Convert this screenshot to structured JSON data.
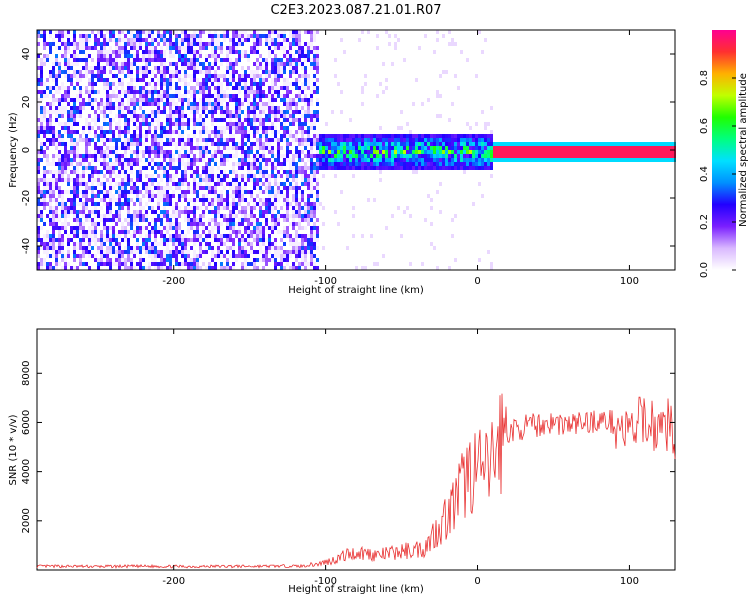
{
  "title": "C2E3.2023.087.21.01.R07",
  "chart_data": [
    {
      "type": "heatmap",
      "title": "",
      "xlabel": "Height of straight line (km)",
      "ylabel": "Frequency (Hz)",
      "xlim": [
        -290,
        130
      ],
      "ylim": [
        -50,
        50
      ],
      "xticks": [
        "-200",
        "-100",
        "0",
        "100"
      ],
      "yticks": [
        "40",
        "20",
        "0",
        "-20",
        "-40"
      ],
      "colorbar": {
        "label": "Normalized spectral amplitude",
        "range": [
          0,
          1
        ],
        "ticks": [
          "0.0",
          "0.2",
          "0.4",
          "0.6",
          "0.8"
        ],
        "colors": [
          "#ffffff",
          "#d9b8ff",
          "#7a1fff",
          "#2200ff",
          "#0090ff",
          "#00e0ff",
          "#00ff80",
          "#20ff00",
          "#c0ff00",
          "#ffb000",
          "#ff3030",
          "#ff0090"
        ]
      },
      "regions": [
        {
          "x_range": [
            -290,
            -105
          ],
          "description_values": {
            "f_range": [
              -50,
              50
            ],
            "amplitude_range": [
              0.05,
              0.35
            ]
          }
        },
        {
          "x_range": [
            -105,
            10
          ],
          "description_values": {
            "f_center": 0,
            "f_halfwidth": 8,
            "amplitude_range": [
              0.2,
              0.75
            ]
          }
        },
        {
          "x_range": [
            10,
            130
          ],
          "description_values": {
            "f_center": 0,
            "f_halfwidth": 2,
            "amplitude_range": [
              0.8,
              0.95
            ]
          }
        }
      ]
    },
    {
      "type": "line",
      "title": "",
      "xlabel": "Height of straight line (km)",
      "ylabel": "SNR (10 * v/v)",
      "xlim": [
        -290,
        130
      ],
      "ylim": [
        0,
        9800
      ],
      "xticks": [
        "-200",
        "-100",
        "0",
        "100"
      ],
      "yticks": [
        "8000",
        "6000",
        "4000",
        "2000"
      ],
      "series_color": "#e83030",
      "series": [
        {
          "x": [
            -290,
            -270,
            -250,
            -230,
            -210,
            -190,
            -170,
            -150,
            -130,
            -115,
            -105,
            -95,
            -85,
            -75,
            -65,
            -55,
            -45,
            -35,
            -25,
            -20,
            -15,
            -10,
            -5,
            0,
            5,
            10,
            15,
            20,
            25,
            30,
            40,
            50,
            60,
            70,
            80,
            90,
            100,
            110,
            120,
            127,
            130
          ],
          "y": [
            150,
            150,
            140,
            150,
            150,
            140,
            150,
            150,
            160,
            160,
            250,
            400,
            650,
            700,
            600,
            700,
            800,
            900,
            1800,
            2200,
            2700,
            3400,
            4000,
            4100,
            3800,
            4500,
            5300,
            5600,
            5700,
            5800,
            5900,
            6000,
            5900,
            6000,
            6100,
            6000,
            5500,
            6200,
            5700,
            6000,
            5500
          ]
        }
      ]
    }
  ]
}
